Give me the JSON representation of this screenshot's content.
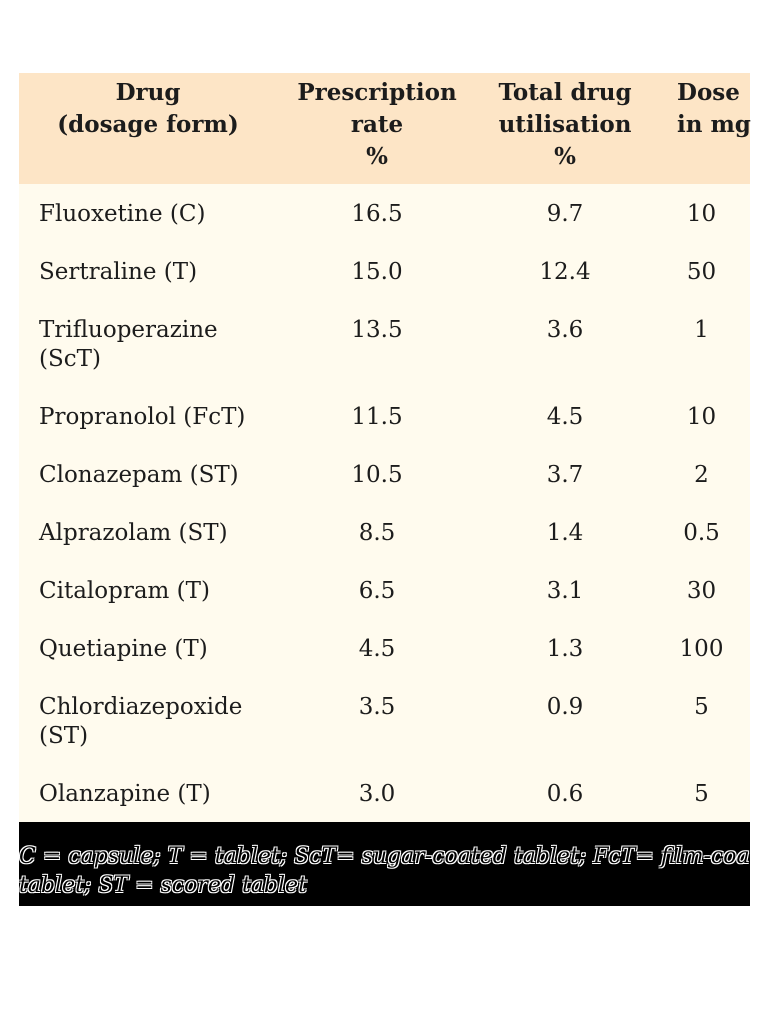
{
  "header": {
    "col1": [
      "Drug",
      "(dosage form)"
    ],
    "col2": [
      "Prescription",
      "rate",
      "%"
    ],
    "col3": [
      "Total drug",
      "utilisation",
      "%"
    ],
    "col4": [
      "Dose",
      "in mg"
    ]
  },
  "rows": [
    {
      "drug": [
        "Fluoxetine (C)"
      ],
      "rate": "16.5",
      "util": "9.7",
      "dose": "10"
    },
    {
      "drug": [
        "Sertraline (T)"
      ],
      "rate": "15.0",
      "util": "12.4",
      "dose": "50"
    },
    {
      "drug": [
        "Trifluoperazine",
        "(ScT)"
      ],
      "rate": "13.5",
      "util": "3.6",
      "dose": "1"
    },
    {
      "drug": [
        "Propranolol (FcT)"
      ],
      "rate": "11.5",
      "util": "4.5",
      "dose": "10"
    },
    {
      "drug": [
        "Clonazepam (ST)"
      ],
      "rate": "10.5",
      "util": "3.7",
      "dose": "2"
    },
    {
      "drug": [
        "Alprazolam (ST)"
      ],
      "rate": "8.5",
      "util": "1.4",
      "dose": "0.5"
    },
    {
      "drug": [
        "Citalopram (T)"
      ],
      "rate": "6.5",
      "util": "3.1",
      "dose": "30"
    },
    {
      "drug": [
        "Quetiapine (T)"
      ],
      "rate": "4.5",
      "util": "1.3",
      "dose": "100"
    },
    {
      "drug": [
        "Chlordiazepoxide",
        "(ST)"
      ],
      "rate": "3.5",
      "util": "0.9",
      "dose": "5"
    },
    {
      "drug": [
        "Olanzapine (T)"
      ],
      "rate": "3.0",
      "util": "0.6",
      "dose": "5"
    }
  ],
  "footnote": [
    "C = capsule; T = tablet; ScT= sugar-coated tablet; FcT= film-coated",
    "tablet; ST = scored tablet"
  ],
  "colors": {
    "header_bg": "#fde5c6",
    "body_bg": "#fffbee",
    "footnote_bg": "#000000"
  }
}
